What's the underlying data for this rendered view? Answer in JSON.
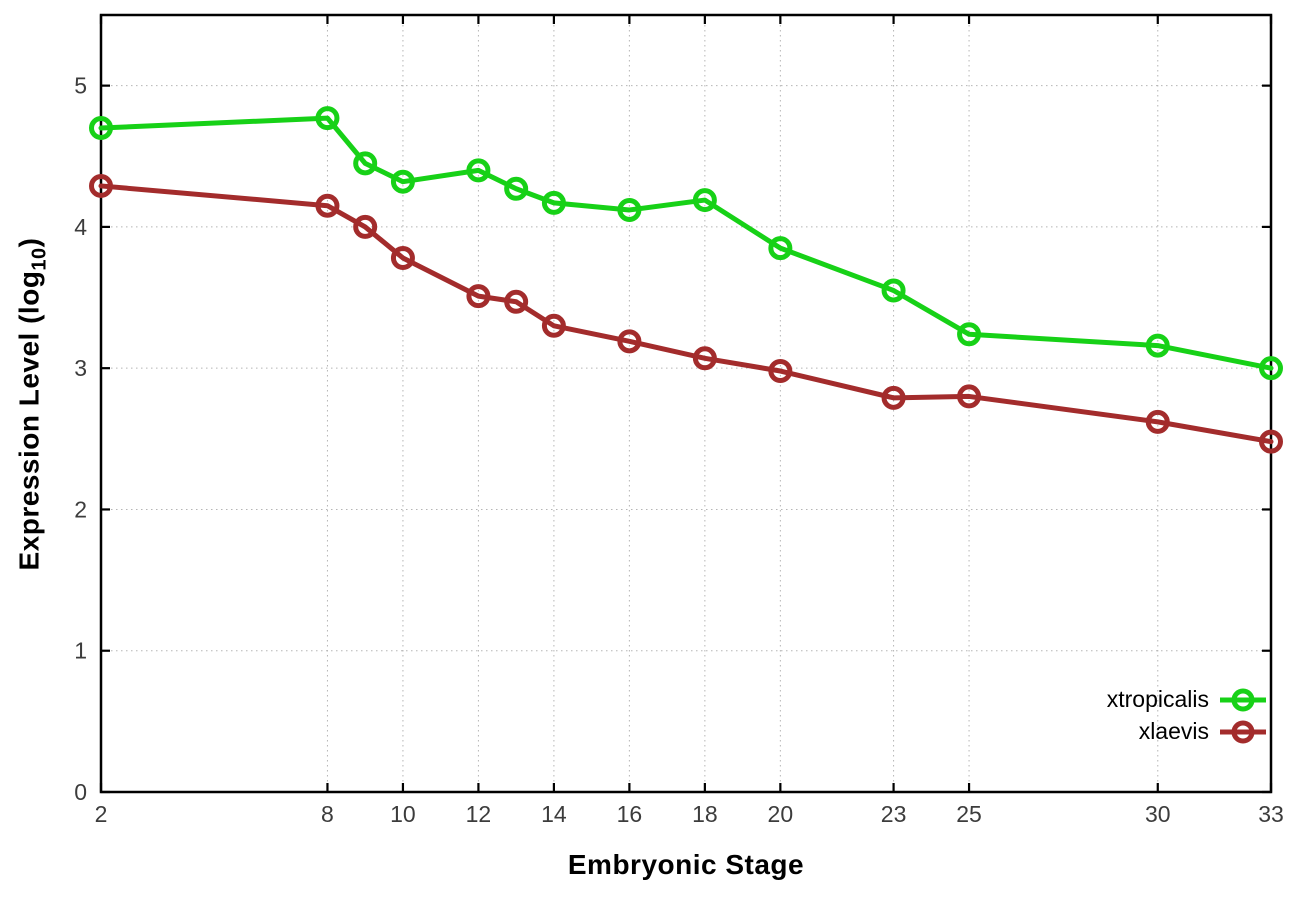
{
  "chart_data": {
    "type": "line",
    "title": "",
    "xlabel": "Embryonic Stage",
    "ylabel": {
      "prefix": "Expression Level (log",
      "sub": "10",
      "suffix": ")"
    },
    "x": [
      2,
      8,
      9,
      10,
      12,
      13,
      14,
      16,
      18,
      20,
      23,
      25,
      30,
      33
    ],
    "series": [
      {
        "name": "xtropicalis",
        "color": "#17d117",
        "values": [
          4.7,
          4.77,
          4.45,
          4.32,
          4.4,
          4.27,
          4.17,
          4.12,
          4.19,
          3.85,
          3.55,
          3.24,
          3.16,
          3.0
        ]
      },
      {
        "name": "xlaevis",
        "color": "#a32c2c",
        "values": [
          4.29,
          4.15,
          4.0,
          3.78,
          3.51,
          3.47,
          3.3,
          3.19,
          3.07,
          2.98,
          2.79,
          2.8,
          2.62,
          2.48
        ]
      }
    ],
    "xticks": [
      2,
      8,
      10,
      12,
      14,
      16,
      18,
      20,
      23,
      25,
      30,
      33
    ],
    "yticks": [
      0,
      1,
      2,
      3,
      4,
      5
    ],
    "xlim": [
      2,
      33
    ],
    "ylim": [
      0,
      5.5
    ],
    "grid": "dotted",
    "legend_position": "bottom-right",
    "marker": "open-circle",
    "colors": {
      "axis": "#000000",
      "tick_text": "#3c3c3c",
      "grid": "#b5b5b5",
      "background": "#ffffff"
    }
  }
}
